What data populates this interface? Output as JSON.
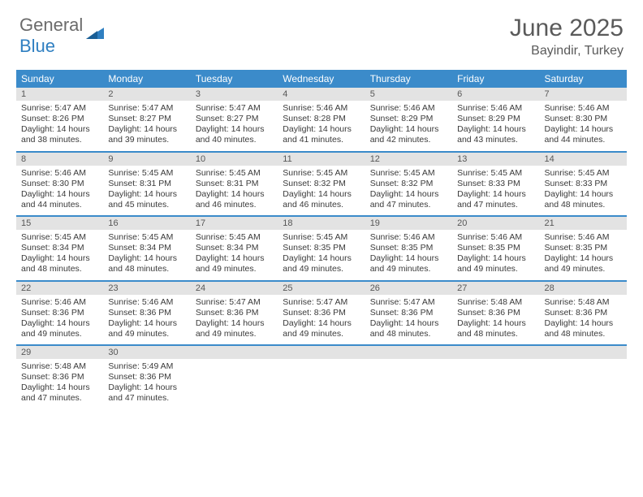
{
  "brand": {
    "part1": "General",
    "part2": "Blue"
  },
  "title": "June 2025",
  "location": "Bayindir, Turkey",
  "colors": {
    "header_bg": "#3b8bca",
    "header_text": "#ffffff",
    "daynum_bg": "#e3e3e3",
    "daynum_text": "#575757",
    "body_text": "#3a3a3a",
    "rule": "#3b8bca",
    "logo_gray": "#6b6b6b",
    "logo_blue": "#2f7fc1"
  },
  "dow": [
    "Sunday",
    "Monday",
    "Tuesday",
    "Wednesday",
    "Thursday",
    "Friday",
    "Saturday"
  ],
  "weeks": [
    [
      {
        "n": "1",
        "sr": "5:47 AM",
        "ss": "8:26 PM",
        "dl": "14 hours and 38 minutes."
      },
      {
        "n": "2",
        "sr": "5:47 AM",
        "ss": "8:27 PM",
        "dl": "14 hours and 39 minutes."
      },
      {
        "n": "3",
        "sr": "5:47 AM",
        "ss": "8:27 PM",
        "dl": "14 hours and 40 minutes."
      },
      {
        "n": "4",
        "sr": "5:46 AM",
        "ss": "8:28 PM",
        "dl": "14 hours and 41 minutes."
      },
      {
        "n": "5",
        "sr": "5:46 AM",
        "ss": "8:29 PM",
        "dl": "14 hours and 42 minutes."
      },
      {
        "n": "6",
        "sr": "5:46 AM",
        "ss": "8:29 PM",
        "dl": "14 hours and 43 minutes."
      },
      {
        "n": "7",
        "sr": "5:46 AM",
        "ss": "8:30 PM",
        "dl": "14 hours and 44 minutes."
      }
    ],
    [
      {
        "n": "8",
        "sr": "5:46 AM",
        "ss": "8:30 PM",
        "dl": "14 hours and 44 minutes."
      },
      {
        "n": "9",
        "sr": "5:45 AM",
        "ss": "8:31 PM",
        "dl": "14 hours and 45 minutes."
      },
      {
        "n": "10",
        "sr": "5:45 AM",
        "ss": "8:31 PM",
        "dl": "14 hours and 46 minutes."
      },
      {
        "n": "11",
        "sr": "5:45 AM",
        "ss": "8:32 PM",
        "dl": "14 hours and 46 minutes."
      },
      {
        "n": "12",
        "sr": "5:45 AM",
        "ss": "8:32 PM",
        "dl": "14 hours and 47 minutes."
      },
      {
        "n": "13",
        "sr": "5:45 AM",
        "ss": "8:33 PM",
        "dl": "14 hours and 47 minutes."
      },
      {
        "n": "14",
        "sr": "5:45 AM",
        "ss": "8:33 PM",
        "dl": "14 hours and 48 minutes."
      }
    ],
    [
      {
        "n": "15",
        "sr": "5:45 AM",
        "ss": "8:34 PM",
        "dl": "14 hours and 48 minutes."
      },
      {
        "n": "16",
        "sr": "5:45 AM",
        "ss": "8:34 PM",
        "dl": "14 hours and 48 minutes."
      },
      {
        "n": "17",
        "sr": "5:45 AM",
        "ss": "8:34 PM",
        "dl": "14 hours and 49 minutes."
      },
      {
        "n": "18",
        "sr": "5:45 AM",
        "ss": "8:35 PM",
        "dl": "14 hours and 49 minutes."
      },
      {
        "n": "19",
        "sr": "5:46 AM",
        "ss": "8:35 PM",
        "dl": "14 hours and 49 minutes."
      },
      {
        "n": "20",
        "sr": "5:46 AM",
        "ss": "8:35 PM",
        "dl": "14 hours and 49 minutes."
      },
      {
        "n": "21",
        "sr": "5:46 AM",
        "ss": "8:35 PM",
        "dl": "14 hours and 49 minutes."
      }
    ],
    [
      {
        "n": "22",
        "sr": "5:46 AM",
        "ss": "8:36 PM",
        "dl": "14 hours and 49 minutes."
      },
      {
        "n": "23",
        "sr": "5:46 AM",
        "ss": "8:36 PM",
        "dl": "14 hours and 49 minutes."
      },
      {
        "n": "24",
        "sr": "5:47 AM",
        "ss": "8:36 PM",
        "dl": "14 hours and 49 minutes."
      },
      {
        "n": "25",
        "sr": "5:47 AM",
        "ss": "8:36 PM",
        "dl": "14 hours and 49 minutes."
      },
      {
        "n": "26",
        "sr": "5:47 AM",
        "ss": "8:36 PM",
        "dl": "14 hours and 48 minutes."
      },
      {
        "n": "27",
        "sr": "5:48 AM",
        "ss": "8:36 PM",
        "dl": "14 hours and 48 minutes."
      },
      {
        "n": "28",
        "sr": "5:48 AM",
        "ss": "8:36 PM",
        "dl": "14 hours and 48 minutes."
      }
    ],
    [
      {
        "n": "29",
        "sr": "5:48 AM",
        "ss": "8:36 PM",
        "dl": "14 hours and 47 minutes."
      },
      {
        "n": "30",
        "sr": "5:49 AM",
        "ss": "8:36 PM",
        "dl": "14 hours and 47 minutes."
      },
      null,
      null,
      null,
      null,
      null
    ]
  ],
  "labels": {
    "sunrise": "Sunrise:",
    "sunset": "Sunset:",
    "daylight": "Daylight:"
  }
}
